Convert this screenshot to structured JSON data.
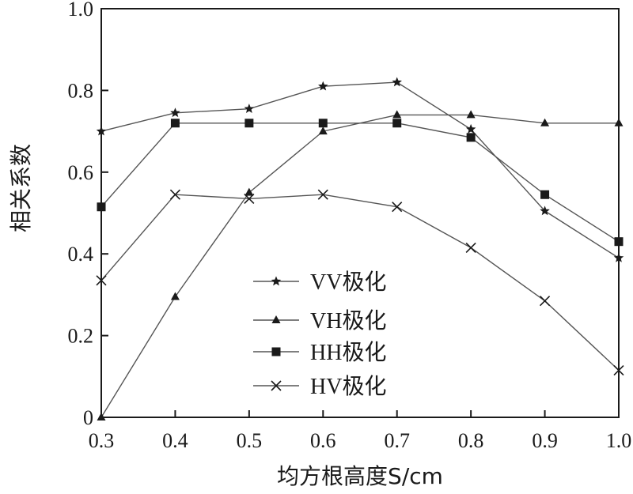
{
  "chart_data": {
    "type": "line",
    "xlabel": "均方根高度S/cm",
    "ylabel": "相关系数",
    "x": [
      0.3,
      0.4,
      0.5,
      0.6,
      0.7,
      0.8,
      0.9,
      1.0
    ],
    "x_tick_labels": [
      "0.3",
      "0.4",
      "0.5",
      "0.6",
      "0.7",
      "0.8",
      "0.9",
      "1.0"
    ],
    "y_tick_values": [
      0,
      0.2,
      0.4,
      0.6,
      0.8,
      1.0
    ],
    "y_tick_labels": [
      "0",
      "0.2",
      "0.4",
      "0.6",
      "0.8",
      "1.0"
    ],
    "xlim": [
      0.3,
      1.0
    ],
    "ylim": [
      0,
      1.0
    ],
    "grid": false,
    "legend_position": "bottom-center",
    "series": [
      {
        "name": "VV极化",
        "marker": "star",
        "values": [
          0.7,
          0.745,
          0.755,
          0.81,
          0.82,
          0.705,
          0.505,
          0.39
        ]
      },
      {
        "name": "VH极化",
        "marker": "triangle",
        "values": [
          0.0,
          0.295,
          0.55,
          0.7,
          0.74,
          0.74,
          0.72,
          0.72
        ]
      },
      {
        "name": "HH极化",
        "marker": "square",
        "values": [
          0.515,
          0.72,
          0.72,
          0.72,
          0.72,
          0.685,
          0.545,
          0.43
        ]
      },
      {
        "name": "HV极化",
        "marker": "x",
        "values": [
          0.335,
          0.545,
          0.535,
          0.545,
          0.515,
          0.415,
          0.285,
          0.115
        ]
      }
    ],
    "colors": {
      "line": "#555555",
      "marker": "#1a1a1a",
      "axis": "#1a1a1a"
    }
  }
}
